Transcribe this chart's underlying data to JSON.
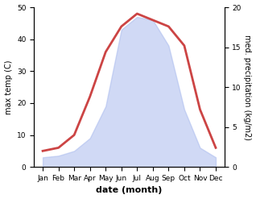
{
  "months": [
    "Jan",
    "Feb",
    "Mar",
    "Apr",
    "May",
    "Jun",
    "Jul",
    "Aug",
    "Sep",
    "Oct",
    "Nov",
    "Dec"
  ],
  "temperature": [
    5,
    6,
    10,
    22,
    36,
    44,
    48,
    46,
    44,
    38,
    18,
    6
  ],
  "precipitation": [
    3,
    3.5,
    5,
    9,
    19,
    43,
    47,
    46,
    38,
    18,
    6,
    3
  ],
  "temp_color": "#cc4444",
  "precip_fill_color": "#aabbee",
  "temp_ylim": [
    0,
    50
  ],
  "precip_ylim": [
    0,
    50
  ],
  "right_axis_ticks": [
    0,
    5,
    10,
    15,
    20
  ],
  "right_axis_tick_labels": [
    "0",
    "5",
    "10",
    "15",
    "20"
  ],
  "temp_yticks": [
    0,
    10,
    20,
    30,
    40,
    50
  ],
  "ylabel_left": "max temp (C)",
  "ylabel_right": "med. precipitation (kg/m2)",
  "xlabel": "date (month)",
  "bg_color": "#ffffff",
  "line_width": 2.0,
  "fill_alpha": 0.55
}
